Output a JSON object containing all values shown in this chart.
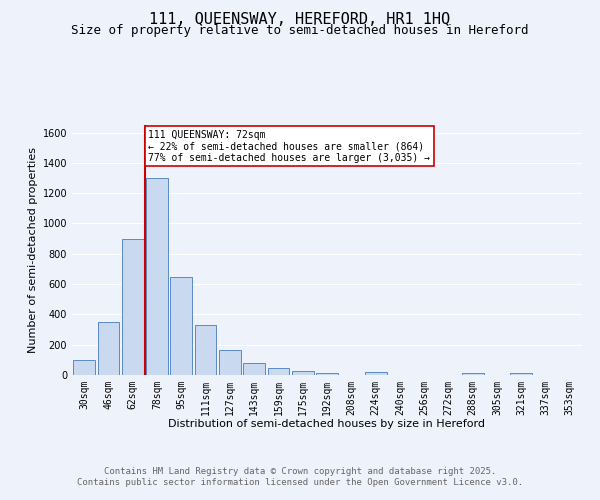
{
  "title1": "111, QUEENSWAY, HEREFORD, HR1 1HQ",
  "title2": "Size of property relative to semi-detached houses in Hereford",
  "xlabel": "Distribution of semi-detached houses by size in Hereford",
  "ylabel": "Number of semi-detached properties",
  "categories": [
    "30sqm",
    "46sqm",
    "62sqm",
    "78sqm",
    "95sqm",
    "111sqm",
    "127sqm",
    "143sqm",
    "159sqm",
    "175sqm",
    "192sqm",
    "208sqm",
    "224sqm",
    "240sqm",
    "256sqm",
    "272sqm",
    "288sqm",
    "305sqm",
    "321sqm",
    "337sqm",
    "353sqm"
  ],
  "values": [
    100,
    350,
    900,
    1300,
    650,
    330,
    165,
    80,
    45,
    25,
    15,
    0,
    20,
    0,
    0,
    0,
    15,
    0,
    15,
    0,
    0
  ],
  "bar_color": "#c9d9f0",
  "bar_edge_color": "#5b8ac5",
  "vline_color": "#cc0000",
  "annotation_text": "111 QUEENSWAY: 72sqm\n← 22% of semi-detached houses are smaller (864)\n77% of semi-detached houses are larger (3,035) →",
  "annotation_box_color": "#ffffff",
  "annotation_box_edge": "#cc0000",
  "ylim": [
    0,
    1650
  ],
  "yticks": [
    0,
    200,
    400,
    600,
    800,
    1000,
    1200,
    1400,
    1600
  ],
  "footer1": "Contains HM Land Registry data © Crown copyright and database right 2025.",
  "footer2": "Contains public sector information licensed under the Open Government Licence v3.0.",
  "bg_color": "#eef2fb",
  "grid_color": "#ffffff",
  "title1_fontsize": 11,
  "title2_fontsize": 9,
  "axis_fontsize": 8,
  "tick_fontsize": 7,
  "footer_fontsize": 6.5,
  "ann_fontsize": 7
}
